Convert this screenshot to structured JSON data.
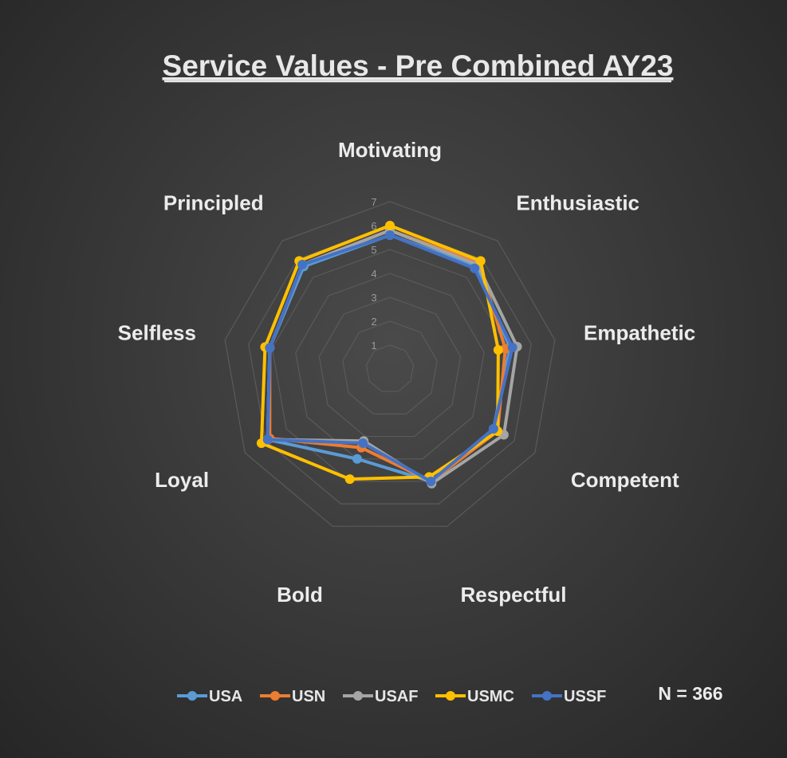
{
  "chart_data": {
    "type": "radar",
    "title": "Service Values - Pre Combined AY23",
    "categories": [
      "Motivating",
      "Enthusiastic",
      "Empathetic",
      "Competent",
      "Respectful",
      "Bold",
      "Loyal",
      "Selfless",
      "Principled"
    ],
    "rlim": [
      0,
      7
    ],
    "ticks": [
      1,
      2,
      3,
      4,
      5,
      6,
      7
    ],
    "grid": true,
    "legend_position": "bottom",
    "series": [
      {
        "name": "USA",
        "color": "#5b9bd5",
        "values": [
          5.6,
          5.6,
          5.1,
          5.0,
          5.0,
          4.0,
          5.9,
          5.1,
          5.6
        ]
      },
      {
        "name": "USN",
        "color": "#ed7d31",
        "values": [
          5.8,
          5.8,
          4.9,
          5.2,
          5.0,
          3.5,
          5.8,
          5.1,
          5.7
        ]
      },
      {
        "name": "USAF",
        "color": "#a5a5a5",
        "values": [
          5.8,
          5.7,
          5.4,
          5.5,
          5.1,
          3.2,
          5.9,
          5.1,
          5.7
        ]
      },
      {
        "name": "USMC",
        "color": "#ffc000",
        "values": [
          6.0,
          5.9,
          4.6,
          5.2,
          4.8,
          4.9,
          6.2,
          5.3,
          5.9
        ]
      },
      {
        "name": "USSF",
        "color": "#4472c4",
        "values": [
          5.6,
          5.5,
          5.2,
          5.0,
          5.0,
          3.3,
          5.9,
          5.1,
          5.7
        ]
      }
    ],
    "annotations": [
      "N = 366"
    ]
  }
}
